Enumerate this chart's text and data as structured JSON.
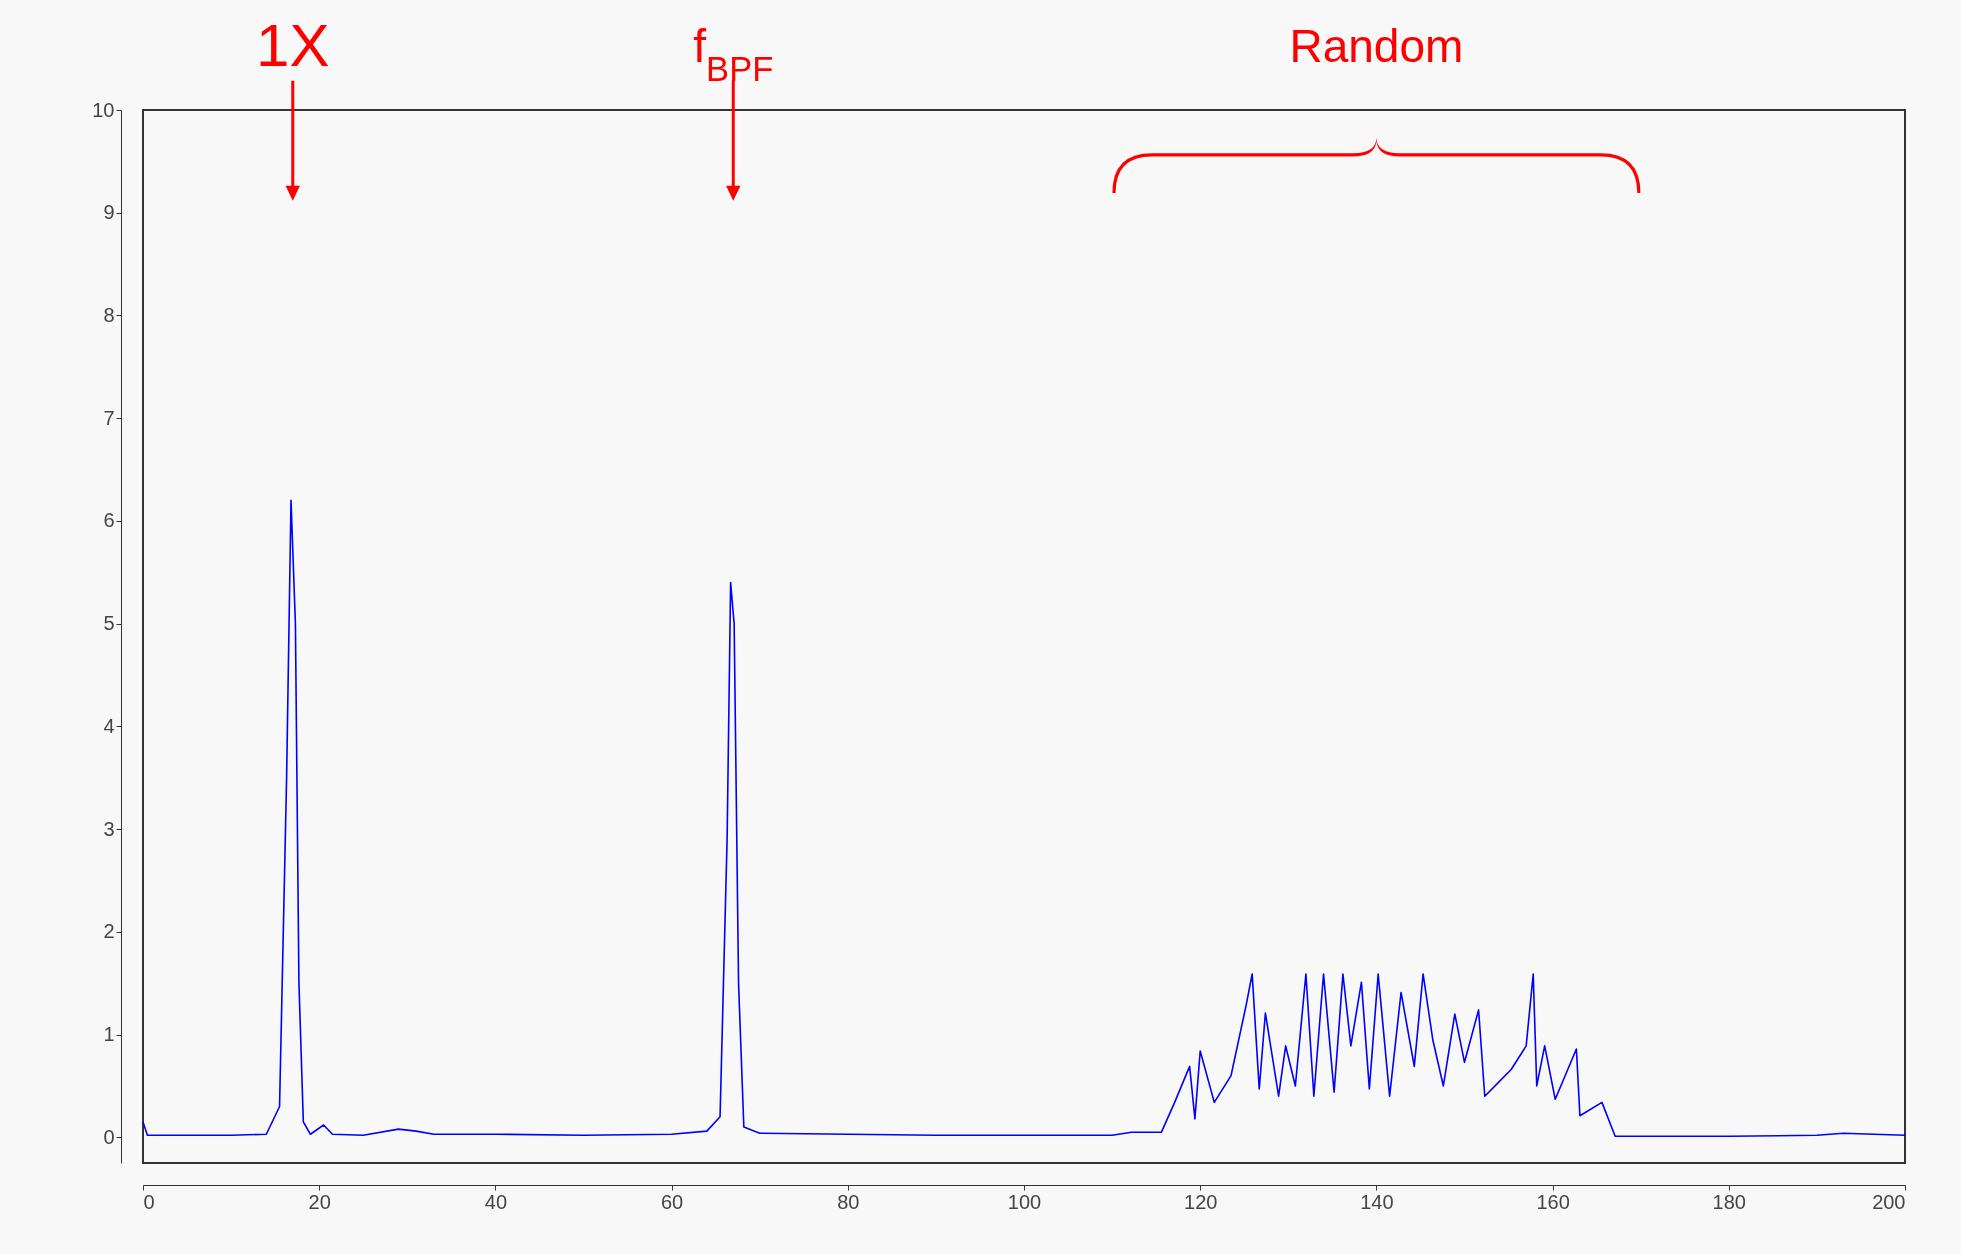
{
  "chart_data": {
    "type": "line",
    "xlim": [
      0,
      200
    ],
    "ylim": [
      -0.25,
      10
    ],
    "xticks": [
      0,
      20,
      40,
      60,
      80,
      100,
      120,
      140,
      160,
      180,
      200
    ],
    "yticks": [
      0,
      1,
      2,
      3,
      4,
      5,
      6,
      7,
      8,
      9,
      10
    ],
    "x": [
      0,
      0.5,
      5,
      10,
      14,
      15.5,
      16.3,
      16.8,
      17.3,
      17.7,
      18.2,
      19,
      20.5,
      21.5,
      25,
      29,
      31,
      33,
      40,
      50,
      60,
      64,
      65.5,
      66.3,
      66.7,
      67.1,
      67.6,
      68.2,
      70,
      80,
      90,
      100,
      110,
      112.2,
      115.6,
      117.1,
      118.8,
      119.4,
      120,
      121.6,
      123.5,
      125.2,
      125.9,
      126.7,
      127.4,
      128.9,
      129.7,
      130.8,
      132,
      132.9,
      134,
      135.2,
      136.2,
      137.1,
      138.3,
      139.2,
      140.2,
      141.5,
      142.8,
      144.3,
      145.3,
      146.4,
      147.6,
      148.9,
      150,
      151.6,
      152.3,
      153.8,
      155.3,
      157,
      157.8,
      158.2,
      159.1,
      160.3,
      162.7,
      163.1,
      165.6,
      167.1,
      168,
      180,
      190,
      193,
      200
    ],
    "series": [
      {
        "color": "#0000ff",
        "values": [
          0.15,
          0.02,
          0.02,
          0.02,
          0.03,
          0.3,
          3.5,
          6.2,
          5.0,
          1.5,
          0.15,
          0.03,
          0.12,
          0.03,
          0.02,
          0.08,
          0.06,
          0.03,
          0.03,
          0.02,
          0.03,
          0.06,
          0.2,
          2.9,
          5.4,
          5.0,
          1.5,
          0.1,
          0.04,
          0.03,
          0.02,
          0.02,
          0.02,
          0.05,
          0.05,
          0.34,
          0.69,
          0.18,
          0.84,
          0.34,
          0.6,
          1.28,
          1.59,
          0.47,
          1.21,
          0.4,
          0.89,
          0.5,
          1.59,
          0.4,
          1.59,
          0.44,
          1.59,
          0.89,
          1.51,
          0.47,
          1.59,
          0.4,
          1.41,
          0.69,
          1.59,
          0.95,
          0.5,
          1.2,
          0.73,
          1.24,
          0.4,
          0.53,
          0.66,
          0.89,
          1.59,
          0.5,
          0.89,
          0.37,
          0.86,
          0.21,
          0.34,
          0.01,
          0.01,
          0.01,
          0.02,
          0.04,
          0.02
        ]
      }
    ],
    "annotations": [
      "1X",
      "f$_{BPF}$",
      "Random"
    ]
  }
}
